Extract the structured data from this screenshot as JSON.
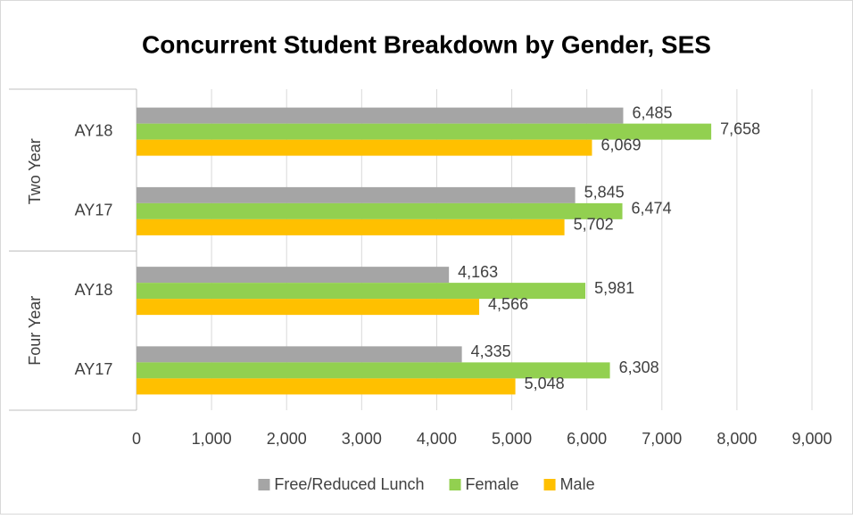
{
  "chart_data": {
    "type": "hbar",
    "title": "Concurrent Student Breakdown by Gender, SES",
    "groups": [
      {
        "label": "Two Year",
        "categories": [
          "AY18",
          "AY17"
        ]
      },
      {
        "label": "Four Year",
        "categories": [
          "AY18",
          "AY17"
        ]
      }
    ],
    "series": [
      {
        "name": "Free/Reduced Lunch",
        "color": "#a5a5a5",
        "values": [
          6485,
          5845,
          4163,
          4335
        ],
        "value_labels": [
          "6,485",
          "5,845",
          "4,163",
          "4,335"
        ]
      },
      {
        "name": "Female",
        "color": "#92d050",
        "values": [
          7658,
          6474,
          5981,
          6308
        ],
        "value_labels": [
          "7,658",
          "6,474",
          "5,981",
          "6,308"
        ]
      },
      {
        "name": "Male",
        "color": "#ffc000",
        "values": [
          6069,
          5702,
          4566,
          5048
        ],
        "value_labels": [
          "6,069",
          "5,702",
          "4,566",
          "5,048"
        ]
      }
    ],
    "xlim": [
      0,
      9000
    ],
    "xticks": [
      0,
      {
        "value": 1000,
        "label": "1,000"
      },
      {
        "value": 2000,
        "label": "2,000"
      },
      {
        "value": 3000,
        "label": "3,000"
      },
      {
        "value": 4000,
        "label": "4,000"
      },
      {
        "value": 5000,
        "label": "5,000"
      },
      {
        "value": 6000,
        "label": "6,000"
      },
      {
        "value": 7000,
        "label": "7,000"
      },
      {
        "value": 8000,
        "label": "8,000"
      },
      {
        "value": 9000,
        "label": "9,000"
      }
    ],
    "grid": true,
    "legend": "bottom"
  }
}
